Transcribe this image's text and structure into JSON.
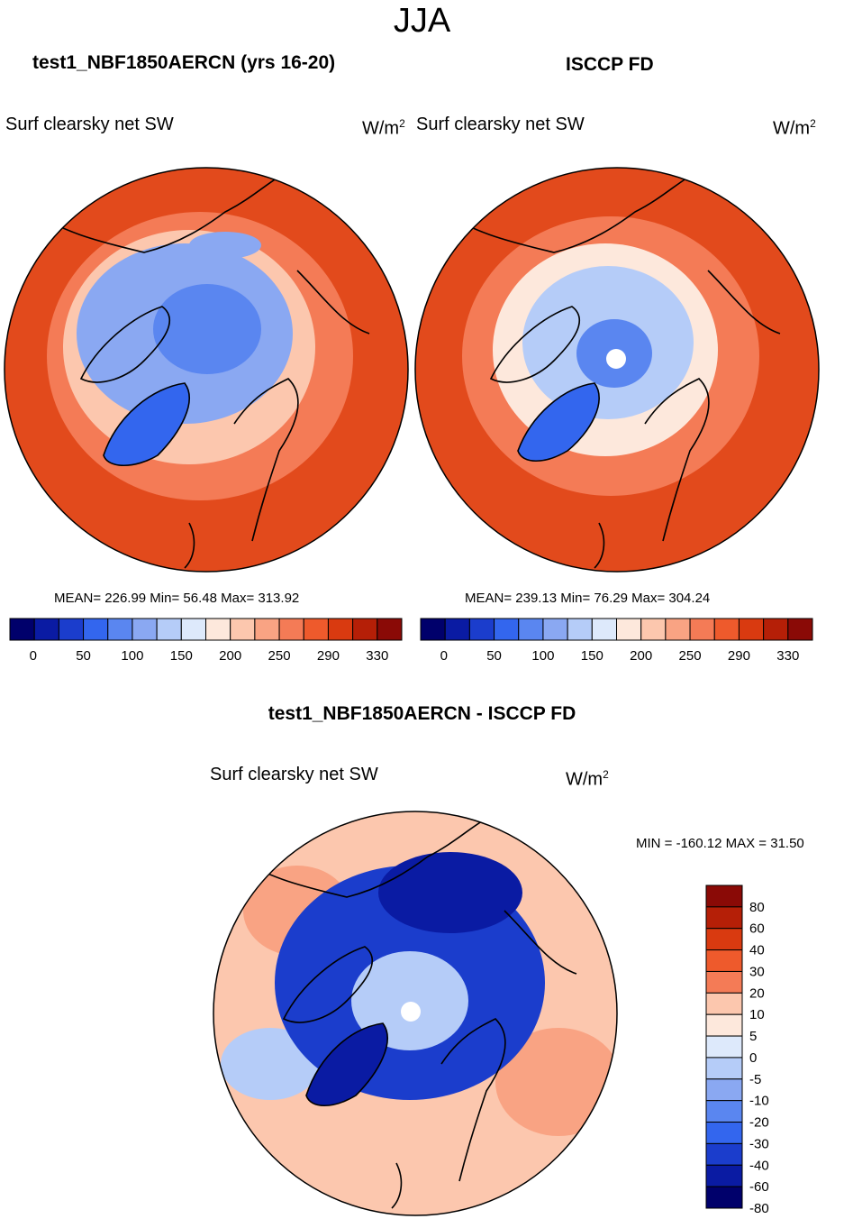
{
  "season": "JJA",
  "units": "W/m2",
  "panels": [
    {
      "title": "test1_NBF1850AERCN (yrs 16-20)",
      "variable": "Surf clearsky net SW",
      "units_base": "W/m",
      "units_exp": "2",
      "stats": "MEAN= 226.99  Min=  56.48  Max= 313.92"
    },
    {
      "title": "ISCCP FD",
      "variable": "Surf clearsky net SW",
      "units_base": "W/m",
      "units_exp": "2",
      "stats": "MEAN= 239.13  Min=  76.29  Max= 304.24"
    },
    {
      "title": "test1_NBF1850AERCN - ISCCP FD",
      "variable": "Surf clearsky net SW",
      "units_base": "W/m",
      "units_exp": "2",
      "stats": "MIN = -160.12 MAX =  31.50"
    }
  ],
  "colorbar_main": {
    "colors": [
      "#00006b",
      "#0a1ba3",
      "#1b3dcc",
      "#3366ee",
      "#5a86f0",
      "#8aa8f2",
      "#b5ccf8",
      "#dde9fb",
      "#fde8dc",
      "#fcc7ae",
      "#f9a383",
      "#f47b56",
      "#ee5a2c",
      "#d93a10",
      "#b51f07",
      "#8a0a06"
    ],
    "labels": [
      "0",
      "50",
      "100",
      "150",
      "200",
      "250",
      "290",
      "330"
    ]
  },
  "colorbar_diff": {
    "colors": [
      "#8a0a06",
      "#b51f07",
      "#d93a10",
      "#ee5a2c",
      "#f47b56",
      "#fcc7ae",
      "#fde8dc",
      "#dde9fb",
      "#b5ccf8",
      "#8aa8f2",
      "#5a86f0",
      "#3366ee",
      "#1b3dcc",
      "#0a1ba3",
      "#00006b"
    ],
    "labels": [
      "80",
      "60",
      "40",
      "30",
      "20",
      "10",
      "5",
      "0",
      "-5",
      "-10",
      "-20",
      "-30",
      "-40",
      "-60",
      "-80"
    ]
  },
  "map_fields": [
    {
      "outer": "#e24a1c",
      "ring": "#f47b56",
      "ring2": "#fcc7ae",
      "mid": "#8aa8f2",
      "center": "#5a86f0",
      "greenland": "#3366ee",
      "pole": ""
    },
    {
      "outer": "#e24a1c",
      "ring": "#f47b56",
      "ring2": "#fde8dc",
      "mid": "#b5ccf8",
      "center": "#5a86f0",
      "greenland": "#3366ee",
      "pole": "#ffffff"
    },
    {
      "outer": "#fcc7ae",
      "ring": "#f9a383",
      "ring2": "#b5ccf8",
      "mid": "#1b3dcc",
      "center": "#b5ccf8",
      "greenland": "#0a1ba3",
      "pole": "#ffffff"
    }
  ]
}
